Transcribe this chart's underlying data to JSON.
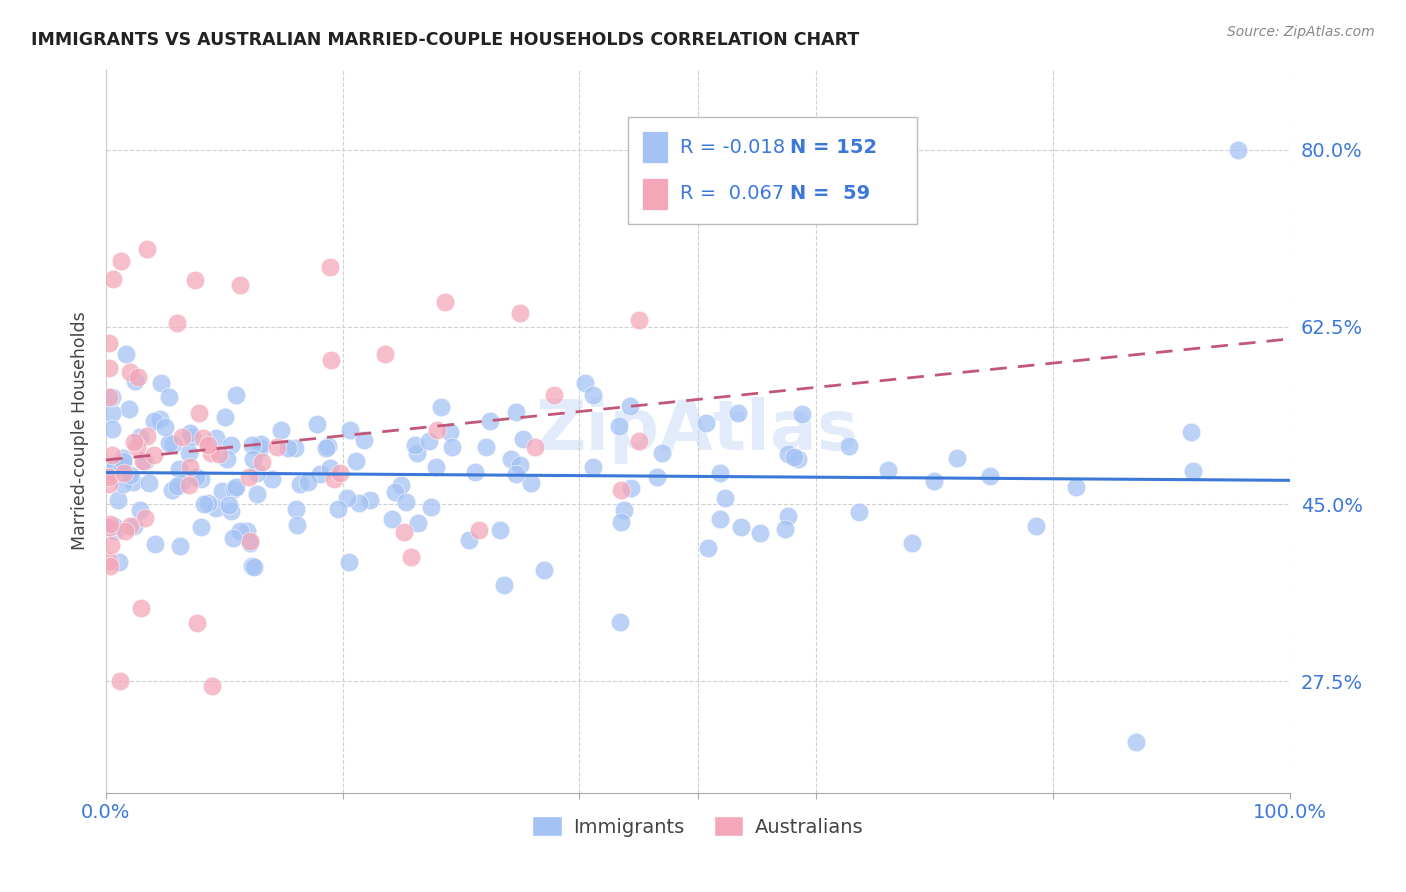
{
  "title": "IMMIGRANTS VS AUSTRALIAN MARRIED-COUPLE HOUSEHOLDS CORRELATION CHART",
  "source": "Source: ZipAtlas.com",
  "ylabel": "Married-couple Households",
  "legend_R_immigrants": "-0.018",
  "legend_N_immigrants": "152",
  "legend_R_australians": "0.067",
  "legend_N_australians": "59",
  "immigrants_color": "#a4c2f4",
  "australians_color": "#f4a7b9",
  "trendline_immigrants_color": "#3c78d8",
  "trendline_australians_color": "#c2577a",
  "background_color": "#ffffff",
  "ytick_vals": [
    0.275,
    0.45,
    0.625,
    0.8
  ],
  "ytick_labels": [
    "27.5%",
    "45.0%",
    "62.5%",
    "80.0%"
  ],
  "ylim_low": 0.165,
  "ylim_high": 0.88,
  "xlim_low": 0.0,
  "xlim_high": 1.0
}
